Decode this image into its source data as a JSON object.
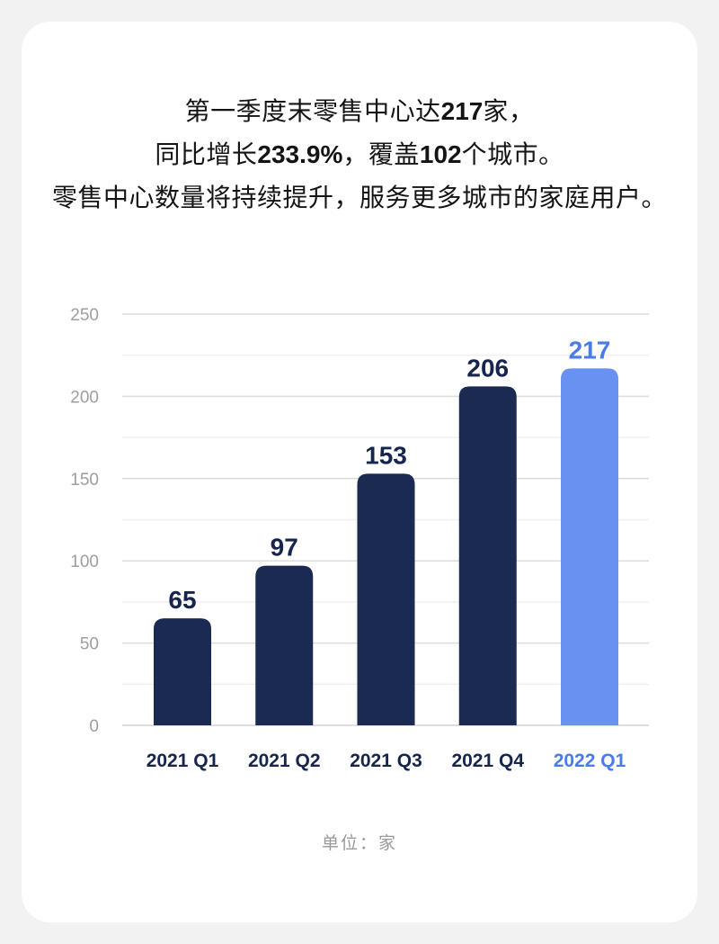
{
  "headline": {
    "l1_a": "第一季度末零售中心达",
    "l1_num": "217",
    "l1_b": "家，",
    "l2_a": "同比增长",
    "l2_num1": "233.9%",
    "l2_b": "，覆盖",
    "l2_num2": "102",
    "l2_c": "个城市。",
    "l3": "零售中心数量将持续提升，服务更多城市的家庭用户。"
  },
  "chart_data": {
    "type": "bar",
    "title": "",
    "categories": [
      "2021 Q1",
      "2021 Q2",
      "2021 Q3",
      "2021 Q4",
      "2022 Q1"
    ],
    "values": [
      65,
      97,
      153,
      206,
      217
    ],
    "highlight_index": 4,
    "xlabel": "",
    "ylabel": "",
    "ylim": [
      0,
      250
    ],
    "y_ticks": [
      0,
      50,
      100,
      150,
      200,
      250
    ],
    "minor_grid_step": 25,
    "grid": "horizontal",
    "legend_position": "none",
    "footnote": "单位：家",
    "colors": {
      "bar": "#1B2A52",
      "bar_highlight": "#6991F2",
      "value_label": "#16254E",
      "value_label_highlight": "#4A7BEC",
      "x_label": "#16254E",
      "x_label_highlight": "#4A7BEC",
      "y_tick": "#9E9E9E",
      "grid_major": "#DCDCDC",
      "grid_minor": "#F0F0F0",
      "axis_baseline": "#D4D4D4"
    }
  }
}
